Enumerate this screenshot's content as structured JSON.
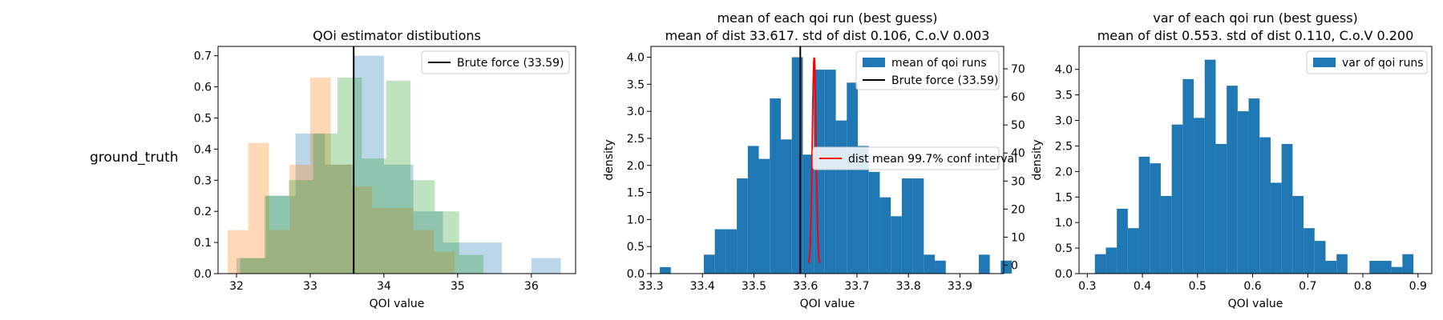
{
  "row_label": "ground_truth",
  "chart_data": [
    {
      "type": "histogram",
      "title": "QOi estimator distibutions",
      "xlabel": "QOI value",
      "ylabel": "",
      "xlim": [
        31.75,
        36.6
      ],
      "ylim": [
        0,
        0.73
      ],
      "xticks": [
        32,
        33,
        34,
        35,
        36
      ],
      "yticks": [
        0.0,
        0.1,
        0.2,
        0.3,
        0.4,
        0.5,
        0.6,
        0.7
      ],
      "grid": false,
      "legend": "upper-right",
      "vline": {
        "x": 33.59,
        "label": "Brute force (33.59)",
        "color": "#000000"
      },
      "series": [
        {
          "color": "#1f77b4",
          "opacity": 0.3,
          "edges": [
            32.0,
            32.4,
            32.8,
            33.2,
            33.6,
            34.0,
            34.4,
            34.8,
            35.2,
            35.6,
            36.0,
            36.4
          ],
          "values": [
            0.05,
            0.25,
            0.45,
            0.35,
            0.7,
            0.35,
            0.2,
            0.1,
            0.1,
            0.0,
            0.05
          ]
        },
        {
          "color": "#ff7f0e",
          "opacity": 0.3,
          "edges": [
            31.88,
            32.16,
            32.44,
            32.72,
            33.0,
            33.28,
            33.56,
            33.84,
            34.12,
            34.4,
            34.68,
            34.96
          ],
          "values": [
            0.14,
            0.42,
            0.14,
            0.35,
            0.63,
            0.35,
            0.28,
            0.21,
            0.21,
            0.14,
            0.07
          ]
        },
        {
          "color": "#2ca02c",
          "opacity": 0.3,
          "edges": [
            32.05,
            32.38,
            32.71,
            33.04,
            33.37,
            33.7,
            34.03,
            34.36,
            34.69,
            35.02,
            35.35
          ],
          "values": [
            0.05,
            0.25,
            0.3,
            0.45,
            0.63,
            0.37,
            0.62,
            0.3,
            0.2,
            0.06
          ]
        }
      ]
    },
    {
      "type": "histogram",
      "title": "mean of each qoi run (best guess)",
      "subtitle": "mean of dist 33.617. std of dist 0.106, C.o.V 0.003",
      "xlabel": "QOI value",
      "ylabel": "density",
      "xlim": [
        33.3,
        33.985
      ],
      "ylim": [
        0,
        4.2
      ],
      "xticks": [
        33.3,
        33.4,
        33.5,
        33.6,
        33.7,
        33.8,
        33.9
      ],
      "yticks": [
        0.0,
        0.5,
        1.0,
        1.5,
        2.0,
        2.5,
        3.0,
        3.5,
        4.0
      ],
      "y2lim": [
        -3,
        78
      ],
      "y2ticks": [
        0,
        10,
        20,
        30,
        40,
        50,
        60,
        70
      ],
      "legend": "upper-right",
      "bin_start": 33.3172,
      "bin_width": 0.02136,
      "values": [
        0.12,
        0.0,
        0.0,
        0.0,
        0.35,
        0.82,
        0.82,
        1.76,
        2.36,
        2.12,
        3.24,
        2.48,
        4.0,
        2.2,
        3.77,
        3.77,
        2.83,
        3.53,
        2.36,
        1.88,
        1.41,
        1.06,
        1.76,
        1.76,
        0.35,
        0.24,
        0.0,
        0.0,
        0.0,
        0.35,
        0.0,
        0.24
      ],
      "bar_label": "mean of qoi runs",
      "bar_color": "#1f77b4",
      "vline": {
        "x": 33.59,
        "label": "Brute force (33.59)",
        "color": "#000000"
      },
      "conf_interval": {
        "label": "dist mean 99.7% conf interval",
        "color": "#ff0000",
        "mean": 33.617,
        "sd": 0.00361,
        "peak": 74
      }
    },
    {
      "type": "histogram",
      "title": "var of each qoi run (best guess)",
      "subtitle": "mean of dist 0.553. std of dist 0.110, C.o.V 0.200",
      "xlabel": "QOI value",
      "ylabel": "density",
      "xlim": [
        0.285,
        0.925
      ],
      "ylim": [
        0,
        4.45
      ],
      "xticks": [
        0.3,
        0.4,
        0.5,
        0.6,
        0.7,
        0.8,
        0.9
      ],
      "yticks": [
        0.0,
        0.5,
        1.0,
        1.5,
        2.0,
        2.5,
        3.0,
        3.5,
        4.0
      ],
      "legend": "upper-right",
      "bin_start": 0.3137,
      "bin_width": 0.01993,
      "values": [
        0.38,
        0.51,
        1.27,
        0.89,
        2.29,
        2.16,
        1.52,
        2.92,
        3.81,
        3.05,
        4.19,
        2.54,
        3.68,
        3.18,
        3.43,
        2.67,
        1.78,
        2.54,
        1.52,
        0.89,
        0.64,
        0.25,
        0.38,
        0.0,
        0.0,
        0.25,
        0.25,
        0.13,
        0.38
      ],
      "bar_label": "var of qoi runs",
      "bar_color": "#1f77b4"
    }
  ]
}
